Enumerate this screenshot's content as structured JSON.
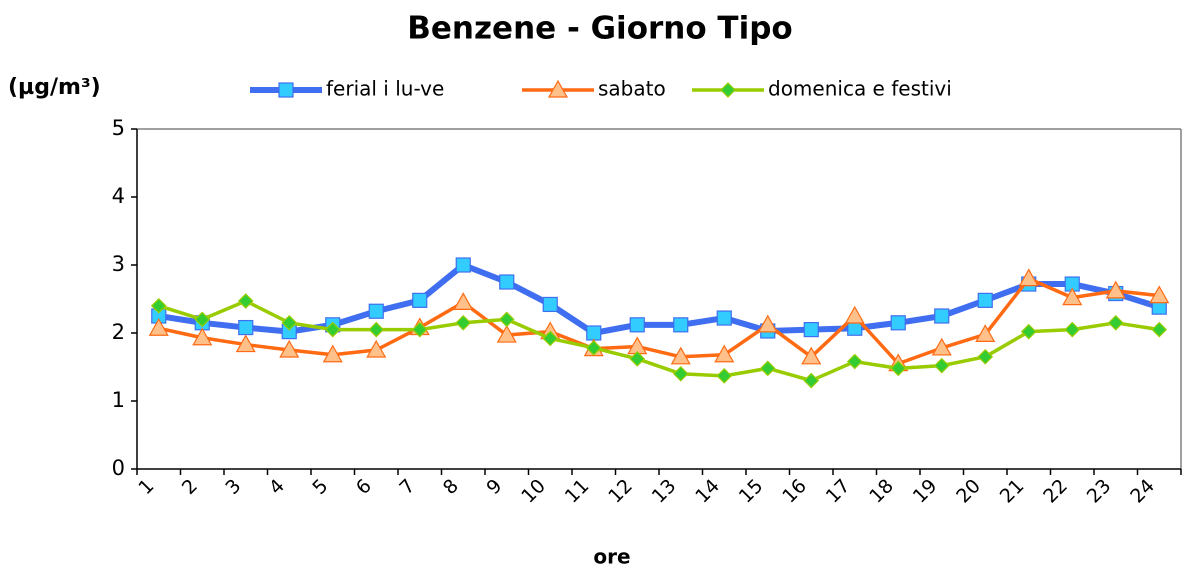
{
  "chart_data": {
    "type": "line",
    "title": "Benzene - Giorno Tipo",
    "y_label": "(µg/m³)",
    "x_label": "ore",
    "categories": [
      "1",
      "2",
      "3",
      "4",
      "5",
      "6",
      "7",
      "8",
      "9",
      "10",
      "11",
      "12",
      "13",
      "14",
      "15",
      "16",
      "17",
      "18",
      "19",
      "20",
      "21",
      "22",
      "23",
      "24"
    ],
    "series": [
      {
        "name": "ferial i lu-ve",
        "color": "#3f6ef0",
        "marker": "square",
        "marker_color": "#33ccff",
        "values": [
          2.25,
          2.15,
          2.08,
          2.02,
          2.12,
          2.32,
          2.48,
          3.0,
          2.75,
          2.42,
          2.0,
          2.12,
          2.12,
          2.22,
          2.03,
          2.05,
          2.07,
          2.15,
          2.25,
          2.48,
          2.72,
          2.72,
          2.58,
          2.38
        ]
      },
      {
        "name": "sabato",
        "color": "#ff6a13",
        "marker": "triangle",
        "marker_color": "#ffc08a",
        "values": [
          2.07,
          1.93,
          1.83,
          1.75,
          1.68,
          1.75,
          2.08,
          2.45,
          1.97,
          2.02,
          1.77,
          1.8,
          1.65,
          1.68,
          2.12,
          1.65,
          2.25,
          1.55,
          1.78,
          1.98,
          2.8,
          2.52,
          2.62,
          2.55
        ]
      },
      {
        "name": "domenica e festivi",
        "color": "#99cc00",
        "marker": "diamond",
        "marker_color": "#33cc33",
        "values": [
          2.4,
          2.2,
          2.47,
          2.15,
          2.05,
          2.05,
          2.05,
          2.15,
          2.2,
          1.92,
          1.78,
          1.62,
          1.4,
          1.37,
          1.48,
          1.3,
          1.58,
          1.48,
          1.52,
          1.65,
          2.02,
          2.05,
          2.15,
          2.05
        ]
      }
    ],
    "ylim": [
      0,
      5
    ],
    "yticks": [
      0,
      1,
      2,
      3,
      4,
      5
    ],
    "grid": false
  }
}
